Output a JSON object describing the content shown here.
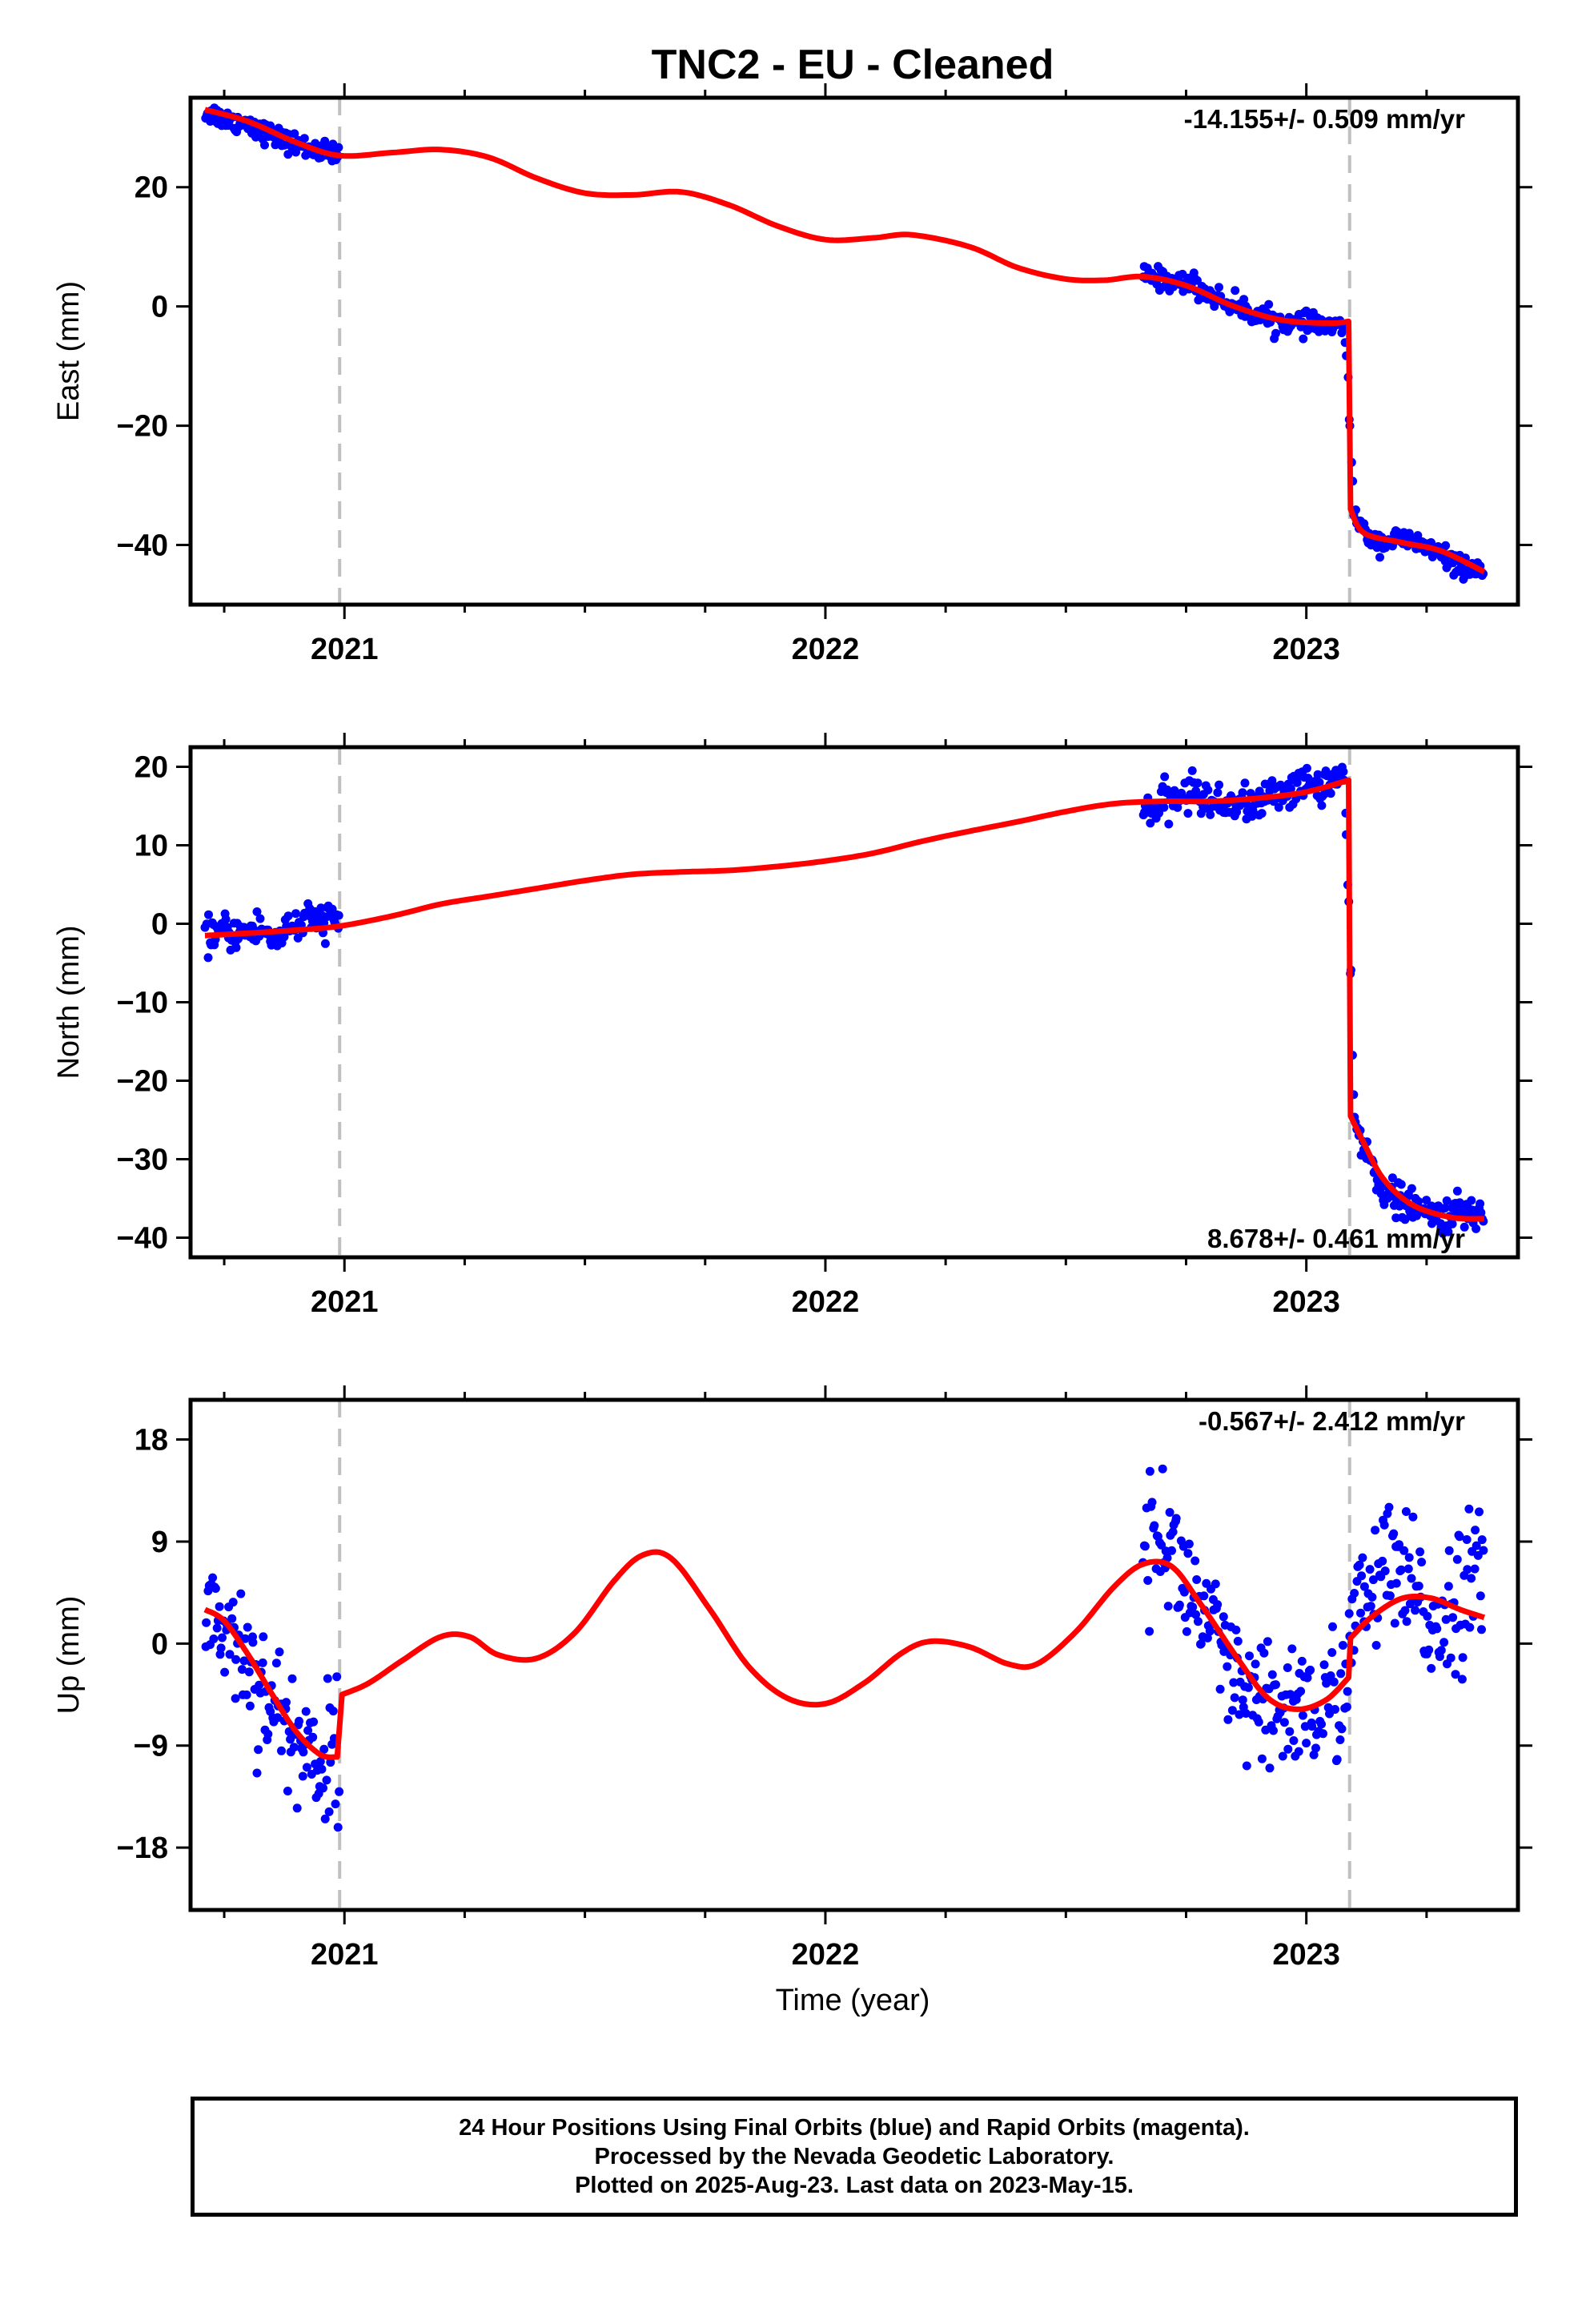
{
  "title": "TNC2  - EU - Cleaned",
  "xlabel": "Time (year)",
  "footer": {
    "line1": "24 Hour Positions Using Final Orbits (blue) and Rapid Orbits (magenta).",
    "line2": "Processed by the Nevada Geodetic Laboratory.",
    "line3": "Plotted on 2025-Aug-23. Last data on 2023-May-15."
  },
  "colors": {
    "data": "#0000ff",
    "model": "#ff0000",
    "event_line": "#c0c0c0",
    "frame": "#000000"
  },
  "chart_data": [
    {
      "type": "scatter",
      "ylabel": "East (mm)",
      "xlim": [
        2020.68,
        2023.44
      ],
      "ylim": [
        -50,
        35
      ],
      "yticks": [
        20,
        0,
        -20,
        -40
      ],
      "xticks": [
        2021,
        2022,
        2023
      ],
      "rate_label": "-14.155+/- 0.509 mm/yr",
      "rate_label_position": "top-right",
      "event_lines": [
        2020.99,
        2023.09
      ],
      "data_segments": [
        [
          2020.71,
          2020.99
        ],
        [
          2022.66,
          2023.09
        ],
        [
          2023.09,
          2023.37
        ]
      ],
      "data_samples": [
        [
          2020.72,
          32.5
        ],
        [
          2020.74,
          31.8
        ],
        [
          2020.76,
          31.2
        ],
        [
          2020.78,
          30.8
        ],
        [
          2020.8,
          30.9
        ],
        [
          2020.82,
          29.8
        ],
        [
          2020.84,
          29.0
        ],
        [
          2020.86,
          28.4
        ],
        [
          2020.88,
          27.6
        ],
        [
          2020.9,
          27.2
        ],
        [
          2020.92,
          26.6
        ],
        [
          2020.94,
          26.2
        ],
        [
          2020.96,
          25.8
        ],
        [
          2020.98,
          25.4
        ],
        [
          2022.68,
          5.0
        ],
        [
          2022.7,
          4.6
        ],
        [
          2022.72,
          4.2
        ],
        [
          2022.74,
          3.8
        ],
        [
          2022.76,
          4.4
        ],
        [
          2022.78,
          2.8
        ],
        [
          2022.8,
          2.0
        ],
        [
          2022.82,
          1.2
        ],
        [
          2022.84,
          0.5
        ],
        [
          2022.86,
          -0.2
        ],
        [
          2022.88,
          -0.8
        ],
        [
          2022.9,
          -1.5
        ],
        [
          2022.92,
          -2.0
        ],
        [
          2022.94,
          -2.4
        ],
        [
          2022.96,
          -2.8
        ],
        [
          2022.98,
          -3.0
        ],
        [
          2023.0,
          -3.2
        ],
        [
          2023.02,
          -3.0
        ],
        [
          2023.04,
          -3.3
        ],
        [
          2023.06,
          -3.5
        ],
        [
          2023.08,
          -3.6
        ],
        [
          2023.1,
          -35.0
        ],
        [
          2023.12,
          -38.0
        ],
        [
          2023.14,
          -39.2
        ],
        [
          2023.16,
          -39.6
        ],
        [
          2023.18,
          -39.2
        ],
        [
          2023.2,
          -39.0
        ],
        [
          2023.22,
          -39.5
        ],
        [
          2023.24,
          -40.0
        ],
        [
          2023.26,
          -40.8
        ],
        [
          2023.28,
          -41.6
        ],
        [
          2023.3,
          -42.6
        ],
        [
          2023.32,
          -43.5
        ],
        [
          2023.34,
          -44.5
        ],
        [
          2023.36,
          -45.2
        ]
      ],
      "scatter_sd": 0.9,
      "model": [
        [
          2020.71,
          33.0
        ],
        [
          2020.8,
          31.0
        ],
        [
          2020.9,
          27.5
        ],
        [
          2020.99,
          25.3
        ],
        [
          2021.1,
          25.8
        ],
        [
          2021.2,
          26.3
        ],
        [
          2021.3,
          25.0
        ],
        [
          2021.4,
          21.5
        ],
        [
          2021.5,
          19.0
        ],
        [
          2021.6,
          18.7
        ],
        [
          2021.7,
          19.2
        ],
        [
          2021.8,
          17.0
        ],
        [
          2021.9,
          13.5
        ],
        [
          2022.0,
          11.2
        ],
        [
          2022.1,
          11.5
        ],
        [
          2022.18,
          12.0
        ],
        [
          2022.3,
          10.0
        ],
        [
          2022.4,
          6.5
        ],
        [
          2022.5,
          4.6
        ],
        [
          2022.58,
          4.4
        ],
        [
          2022.66,
          5.0
        ],
        [
          2022.75,
          3.5
        ],
        [
          2022.85,
          0.0
        ],
        [
          2022.95,
          -2.3
        ],
        [
          2023.05,
          -2.8
        ],
        [
          2023.088,
          -2.5
        ],
        [
          2023.092,
          -34.0
        ],
        [
          2023.12,
          -38.0
        ],
        [
          2023.2,
          -39.6
        ],
        [
          2023.28,
          -41.0
        ],
        [
          2023.37,
          -44.5
        ]
      ]
    },
    {
      "type": "scatter",
      "ylabel": "North (mm)",
      "xlim": [
        2020.68,
        2023.44
      ],
      "ylim": [
        -42.5,
        22.5
      ],
      "yticks": [
        20,
        10,
        0,
        -10,
        -20,
        -30,
        -40
      ],
      "xticks": [
        2021,
        2022,
        2023
      ],
      "rate_label": "8.678+/- 0.461 mm/yr",
      "rate_label_position": "bottom-right",
      "event_lines": [
        2020.99,
        2023.09
      ],
      "data_segments": [
        [
          2020.71,
          2020.99
        ],
        [
          2022.66,
          2023.09
        ],
        [
          2023.09,
          2023.37
        ]
      ],
      "data_samples": [
        [
          2020.72,
          -1.5
        ],
        [
          2020.74,
          -0.8
        ],
        [
          2020.76,
          -1.4
        ],
        [
          2020.78,
          -0.9
        ],
        [
          2020.8,
          -1.2
        ],
        [
          2020.82,
          -0.5
        ],
        [
          2020.84,
          -1.3
        ],
        [
          2020.86,
          -1.8
        ],
        [
          2020.88,
          -0.4
        ],
        [
          2020.9,
          -0.2
        ],
        [
          2020.92,
          0.2
        ],
        [
          2020.94,
          0.4
        ],
        [
          2020.96,
          0.6
        ],
        [
          2020.98,
          0.4
        ],
        [
          2022.68,
          14.5
        ],
        [
          2022.7,
          15.2
        ],
        [
          2022.72,
          15.8
        ],
        [
          2022.74,
          16.0
        ],
        [
          2022.76,
          17.0
        ],
        [
          2022.78,
          16.2
        ],
        [
          2022.8,
          15.6
        ],
        [
          2022.82,
          15.0
        ],
        [
          2022.84,
          15.4
        ],
        [
          2022.86,
          15.8
        ],
        [
          2022.88,
          14.8
        ],
        [
          2022.9,
          15.4
        ],
        [
          2022.92,
          16.2
        ],
        [
          2022.94,
          16.8
        ],
        [
          2022.96,
          17.0
        ],
        [
          2022.98,
          17.4
        ],
        [
          2023.0,
          18.0
        ],
        [
          2023.02,
          17.6
        ],
        [
          2023.04,
          17.8
        ],
        [
          2023.06,
          18.4
        ],
        [
          2023.08,
          18.8
        ],
        [
          2023.1,
          -25.5
        ],
        [
          2023.12,
          -28.5
        ],
        [
          2023.14,
          -31.5
        ],
        [
          2023.16,
          -33.5
        ],
        [
          2023.18,
          -35.0
        ],
        [
          2023.2,
          -35.5
        ],
        [
          2023.22,
          -36.2
        ],
        [
          2023.24,
          -36.8
        ],
        [
          2023.26,
          -37.0
        ],
        [
          2023.28,
          -37.2
        ],
        [
          2023.3,
          -37.0
        ],
        [
          2023.32,
          -36.8
        ],
        [
          2023.34,
          -37.2
        ],
        [
          2023.36,
          -36.8
        ]
      ],
      "scatter_sd": 1.1,
      "model": [
        [
          2020.71,
          -1.5
        ],
        [
          2020.8,
          -1.2
        ],
        [
          2020.9,
          -0.8
        ],
        [
          2020.99,
          -0.3
        ],
        [
          2021.1,
          1.0
        ],
        [
          2021.2,
          2.5
        ],
        [
          2021.3,
          3.5
        ],
        [
          2021.4,
          4.5
        ],
        [
          2021.5,
          5.5
        ],
        [
          2021.6,
          6.3
        ],
        [
          2021.7,
          6.6
        ],
        [
          2021.8,
          6.8
        ],
        [
          2021.9,
          7.3
        ],
        [
          2022.0,
          8.0
        ],
        [
          2022.1,
          9.0
        ],
        [
          2022.2,
          10.5
        ],
        [
          2022.3,
          11.8
        ],
        [
          2022.4,
          13.0
        ],
        [
          2022.5,
          14.3
        ],
        [
          2022.6,
          15.3
        ],
        [
          2022.7,
          15.6
        ],
        [
          2022.8,
          15.6
        ],
        [
          2022.9,
          16.0
        ],
        [
          2023.0,
          16.8
        ],
        [
          2023.088,
          18.3
        ],
        [
          2023.092,
          -24.5
        ],
        [
          2023.12,
          -28.0
        ],
        [
          2023.16,
          -32.5
        ],
        [
          2023.22,
          -35.8
        ],
        [
          2023.3,
          -37.4
        ],
        [
          2023.37,
          -37.6
        ]
      ]
    },
    {
      "type": "scatter",
      "ylabel": "Up (mm)",
      "xlim": [
        2020.68,
        2023.44
      ],
      "ylim": [
        -23.5,
        21.5
      ],
      "yticks": [
        18,
        9,
        0,
        -9,
        -18
      ],
      "xticks": [
        2021,
        2022,
        2023
      ],
      "rate_label": "-0.567+/- 2.412 mm/yr",
      "rate_label_position": "top-right",
      "event_lines": [
        2020.99,
        2023.09
      ],
      "data_segments": [
        [
          2020.71,
          2020.99
        ],
        [
          2022.66,
          2023.09
        ],
        [
          2023.09,
          2023.37
        ]
      ],
      "data_samples": [
        [
          2020.72,
          3.5
        ],
        [
          2020.74,
          2.0
        ],
        [
          2020.76,
          1.0
        ],
        [
          2020.78,
          0.0
        ],
        [
          2020.8,
          -1.5
        ],
        [
          2020.82,
          -3.0
        ],
        [
          2020.84,
          -4.5
        ],
        [
          2020.86,
          -6.0
        ],
        [
          2020.88,
          -7.5
        ],
        [
          2020.9,
          -8.5
        ],
        [
          2020.92,
          -9.0
        ],
        [
          2020.94,
          -10.0
        ],
        [
          2020.96,
          -10.5
        ],
        [
          2020.98,
          -9.5
        ],
        [
          2022.68,
          9.0
        ],
        [
          2022.7,
          10.0
        ],
        [
          2022.72,
          8.5
        ],
        [
          2022.74,
          6.0
        ],
        [
          2022.76,
          4.5
        ],
        [
          2022.78,
          3.0
        ],
        [
          2022.8,
          1.0
        ],
        [
          2022.82,
          -1.0
        ],
        [
          2022.84,
          -3.0
        ],
        [
          2022.86,
          -4.5
        ],
        [
          2022.88,
          -5.5
        ],
        [
          2022.9,
          -6.0
        ],
        [
          2022.92,
          -6.5
        ],
        [
          2022.94,
          -6.0
        ],
        [
          2022.96,
          -5.5
        ],
        [
          2022.98,
          -5.0
        ],
        [
          2023.0,
          -5.5
        ],
        [
          2023.02,
          -6.5
        ],
        [
          2023.04,
          -6.0
        ],
        [
          2023.06,
          -4.5
        ],
        [
          2023.08,
          -3.0
        ],
        [
          2023.1,
          2.0
        ],
        [
          2023.12,
          3.5
        ],
        [
          2023.14,
          5.0
        ],
        [
          2023.16,
          6.0
        ],
        [
          2023.18,
          6.5
        ],
        [
          2023.2,
          5.0
        ],
        [
          2023.22,
          4.5
        ],
        [
          2023.24,
          3.0
        ],
        [
          2023.26,
          1.5
        ],
        [
          2023.28,
          2.5
        ],
        [
          2023.3,
          3.5
        ],
        [
          2023.32,
          4.5
        ],
        [
          2023.34,
          5.5
        ],
        [
          2023.36,
          6.0
        ]
      ],
      "scatter_sd": 3.0,
      "model": [
        [
          2020.71,
          3.0
        ],
        [
          2020.75,
          2.0
        ],
        [
          2020.8,
          -1.0
        ],
        [
          2020.85,
          -4.5
        ],
        [
          2020.9,
          -7.8
        ],
        [
          2020.95,
          -9.8
        ],
        [
          2020.985,
          -10.0
        ],
        [
          2020.995,
          -4.5
        ],
        [
          2021.05,
          -3.5
        ],
        [
          2021.12,
          -1.5
        ],
        [
          2021.2,
          0.6
        ],
        [
          2021.26,
          0.6
        ],
        [
          2021.32,
          -1.0
        ],
        [
          2021.4,
          -1.3
        ],
        [
          2021.48,
          1.0
        ],
        [
          2021.56,
          5.5
        ],
        [
          2021.62,
          7.8
        ],
        [
          2021.68,
          7.5
        ],
        [
          2021.76,
          3.0
        ],
        [
          2021.84,
          -2.0
        ],
        [
          2021.92,
          -4.8
        ],
        [
          2022.0,
          -5.3
        ],
        [
          2022.08,
          -3.5
        ],
        [
          2022.16,
          -0.8
        ],
        [
          2022.22,
          0.2
        ],
        [
          2022.3,
          -0.3
        ],
        [
          2022.38,
          -1.8
        ],
        [
          2022.44,
          -1.8
        ],
        [
          2022.52,
          1.0
        ],
        [
          2022.6,
          5.0
        ],
        [
          2022.66,
          7.0
        ],
        [
          2022.72,
          6.8
        ],
        [
          2022.78,
          3.5
        ],
        [
          2022.86,
          -1.5
        ],
        [
          2022.92,
          -4.8
        ],
        [
          2022.98,
          -5.8
        ],
        [
          2023.04,
          -5.0
        ],
        [
          2023.088,
          -3.0
        ],
        [
          2023.092,
          0.5
        ],
        [
          2023.14,
          2.5
        ],
        [
          2023.2,
          4.0
        ],
        [
          2023.26,
          4.0
        ],
        [
          2023.32,
          3.0
        ],
        [
          2023.37,
          2.3
        ]
      ]
    }
  ]
}
